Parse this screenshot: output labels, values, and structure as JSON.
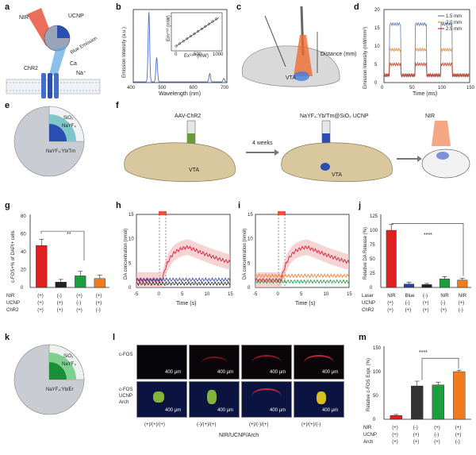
{
  "panels": {
    "a": {
      "letter": "a",
      "nir": "NIR",
      "ucnp": "UCNP",
      "blue": "Blue Emission",
      "chr2": "ChR2",
      "ca": "Ca",
      "na": "Na⁺"
    },
    "b": {
      "letter": "b",
      "ylabel": "Emission Intensity (a.u.)",
      "xlabel": "Wavelength (nm)",
      "inset_y": "Em⁴⁵⁰ (mW)",
      "inset_x": "Ex⁹⁸⁰ (mW)"
    },
    "c": {
      "letter": "c",
      "distance": "Distance (mm)",
      "vta": "VTA"
    },
    "d": {
      "letter": "d",
      "ylabel": "Emission Intensity (mW/mm²)",
      "xlabel": "Time (ms)",
      "legend": [
        "1.5 mm",
        "2.0 mm",
        "2.5 mm"
      ]
    },
    "e": {
      "letter": "e",
      "sio2": "SiO₂",
      "nayf4": "NaYF₄",
      "core": "NaYF₄:Yb/Tm"
    },
    "f": {
      "letter": "f",
      "aav": "AAV-ChR2",
      "ucnp": "NaYF₄:Yb/Tm@SiO₂ UCNP",
      "weeks": "4 weeks",
      "vta": "VTA",
      "nir": "NIR"
    },
    "g": {
      "letter": "g",
      "ylabel": "c-FOS+% of DAPI+ cells",
      "sig": "**",
      "rows": [
        "NIR",
        "UCNP",
        "ChR2"
      ],
      "cols": [
        [
          "(+)",
          "(+)",
          "(+)"
        ],
        [
          "(-)",
          "(+)",
          "(+)"
        ],
        [
          "(+)",
          "(-)",
          "(+)"
        ],
        [
          "(+)",
          "(+)",
          "(-)"
        ]
      ]
    },
    "h": {
      "letter": "h",
      "ylabel": "DA concentration (nmol)",
      "xlabel": "Time (s)"
    },
    "i": {
      "letter": "i",
      "ylabel": "DA concentration (nmol)",
      "xlabel": "Time (s)"
    },
    "j": {
      "letter": "j",
      "ylabel": "Relative DA Release (%)",
      "sig": "****",
      "rows": [
        "Laser",
        "UCNP",
        "ChR2"
      ],
      "laser": [
        "NIR",
        "Blue",
        "(-)",
        "NIR",
        "NIR"
      ],
      "ucnp": [
        "(+)",
        "(-)",
        "(+)",
        "(-)",
        "(+)"
      ],
      "chr2": [
        "(+)",
        "(+)",
        "(+)",
        "(+)",
        "(-)"
      ]
    },
    "k": {
      "letter": "k",
      "sio2": "SiO₂",
      "nayf4": "NaYF₄",
      "core": "NaYF₄:Yb/Er"
    },
    "l": {
      "letter": "l",
      "cfos": "c-FOS",
      "cfos2": "c-FOS",
      "ucnp": "UCNP",
      "arch": "Arch",
      "scale": "400 µm",
      "groups": [
        "(+)/(+)/(+)",
        "(-)/(+)/(+)",
        "(+)/(-)/(+)",
        "(+)/(+)/(-)"
      ],
      "xlabel": "NIR/UCNP/Arch"
    },
    "m": {
      "letter": "m",
      "ylabel": "Relative c-FOS Expr. (%)",
      "sig": "****",
      "rows": [
        "NIR",
        "UCNP",
        "Arch"
      ],
      "cols": [
        [
          "(+)",
          "(+)",
          "(+)"
        ],
        [
          "(-)",
          "(+)",
          "(+)"
        ],
        [
          "(+)",
          "(-)",
          "(+)"
        ],
        [
          "(+)",
          "(+)",
          "(-)"
        ]
      ]
    }
  },
  "chart_data": [
    {
      "type": "line",
      "id": "b",
      "x_range": [
        400,
        700
      ],
      "peaks": [
        {
          "x": 450,
          "y": 1.0
        },
        {
          "x": 475,
          "y": 0.35
        },
        {
          "x": 645,
          "y": 0.12
        },
        {
          "x": 690,
          "y": 0.05
        }
      ],
      "xticks": [
        400,
        500,
        600,
        700
      ],
      "inset": {
        "type": "scatter",
        "x": [
          0,
          500,
          1000
        ],
        "xticks": [
          0,
          500,
          1000
        ]
      }
    },
    {
      "type": "line",
      "id": "d",
      "x_range": [
        0,
        150
      ],
      "ylim": [
        0,
        20
      ],
      "xticks": [
        0,
        50,
        100,
        150
      ],
      "yticks": [
        0,
        5,
        10,
        15,
        20
      ],
      "series": [
        {
          "name": "1.5 mm",
          "level": 16,
          "base": 2,
          "color": "#5b7bb5"
        },
        {
          "name": "2.0 mm",
          "level": 9,
          "base": 2,
          "color": "#e08b3c"
        },
        {
          "name": "2.5 mm",
          "level": 5,
          "base": 2,
          "color": "#c0392b"
        }
      ]
    },
    {
      "type": "bar",
      "id": "g",
      "values": [
        47,
        6,
        13,
        10
      ],
      "errors": [
        7,
        3,
        5,
        4
      ],
      "colors": [
        "#e02020",
        "#222222",
        "#1a9e3e",
        "#f07a1c"
      ],
      "ylim": [
        0,
        80
      ],
      "yticks": [
        0,
        20,
        40,
        60,
        80
      ]
    },
    {
      "type": "line",
      "id": "h",
      "x_range": [
        -5,
        15
      ],
      "ylim": [
        0,
        15
      ],
      "xticks": [
        -5,
        0,
        5,
        10,
        15
      ],
      "yticks": [
        0,
        5,
        10,
        15
      ]
    },
    {
      "type": "line",
      "id": "i",
      "x_range": [
        -5,
        15
      ],
      "ylim": [
        0,
        15
      ],
      "xticks": [
        -5,
        0,
        5,
        10,
        15
      ],
      "yticks": [
        0,
        5,
        10,
        15
      ]
    },
    {
      "type": "bar",
      "id": "j",
      "values": [
        100,
        6,
        5,
        15,
        13
      ],
      "errors": [
        10,
        3,
        2,
        4,
        3
      ],
      "colors": [
        "#e02020",
        "#2c3e9e",
        "#222222",
        "#1a9e3e",
        "#f07a1c"
      ],
      "ylim": [
        0,
        125
      ],
      "yticks": [
        0,
        25,
        50,
        75,
        100,
        125
      ]
    },
    {
      "type": "bar",
      "id": "m",
      "values": [
        8,
        70,
        72,
        100
      ],
      "errors": [
        2,
        10,
        6,
        3
      ],
      "colors": [
        "#e02020",
        "#333333",
        "#1a9e3e",
        "#f07a1c"
      ],
      "ylim": [
        0,
        150
      ],
      "yticks": [
        0,
        50,
        100,
        150
      ]
    }
  ]
}
